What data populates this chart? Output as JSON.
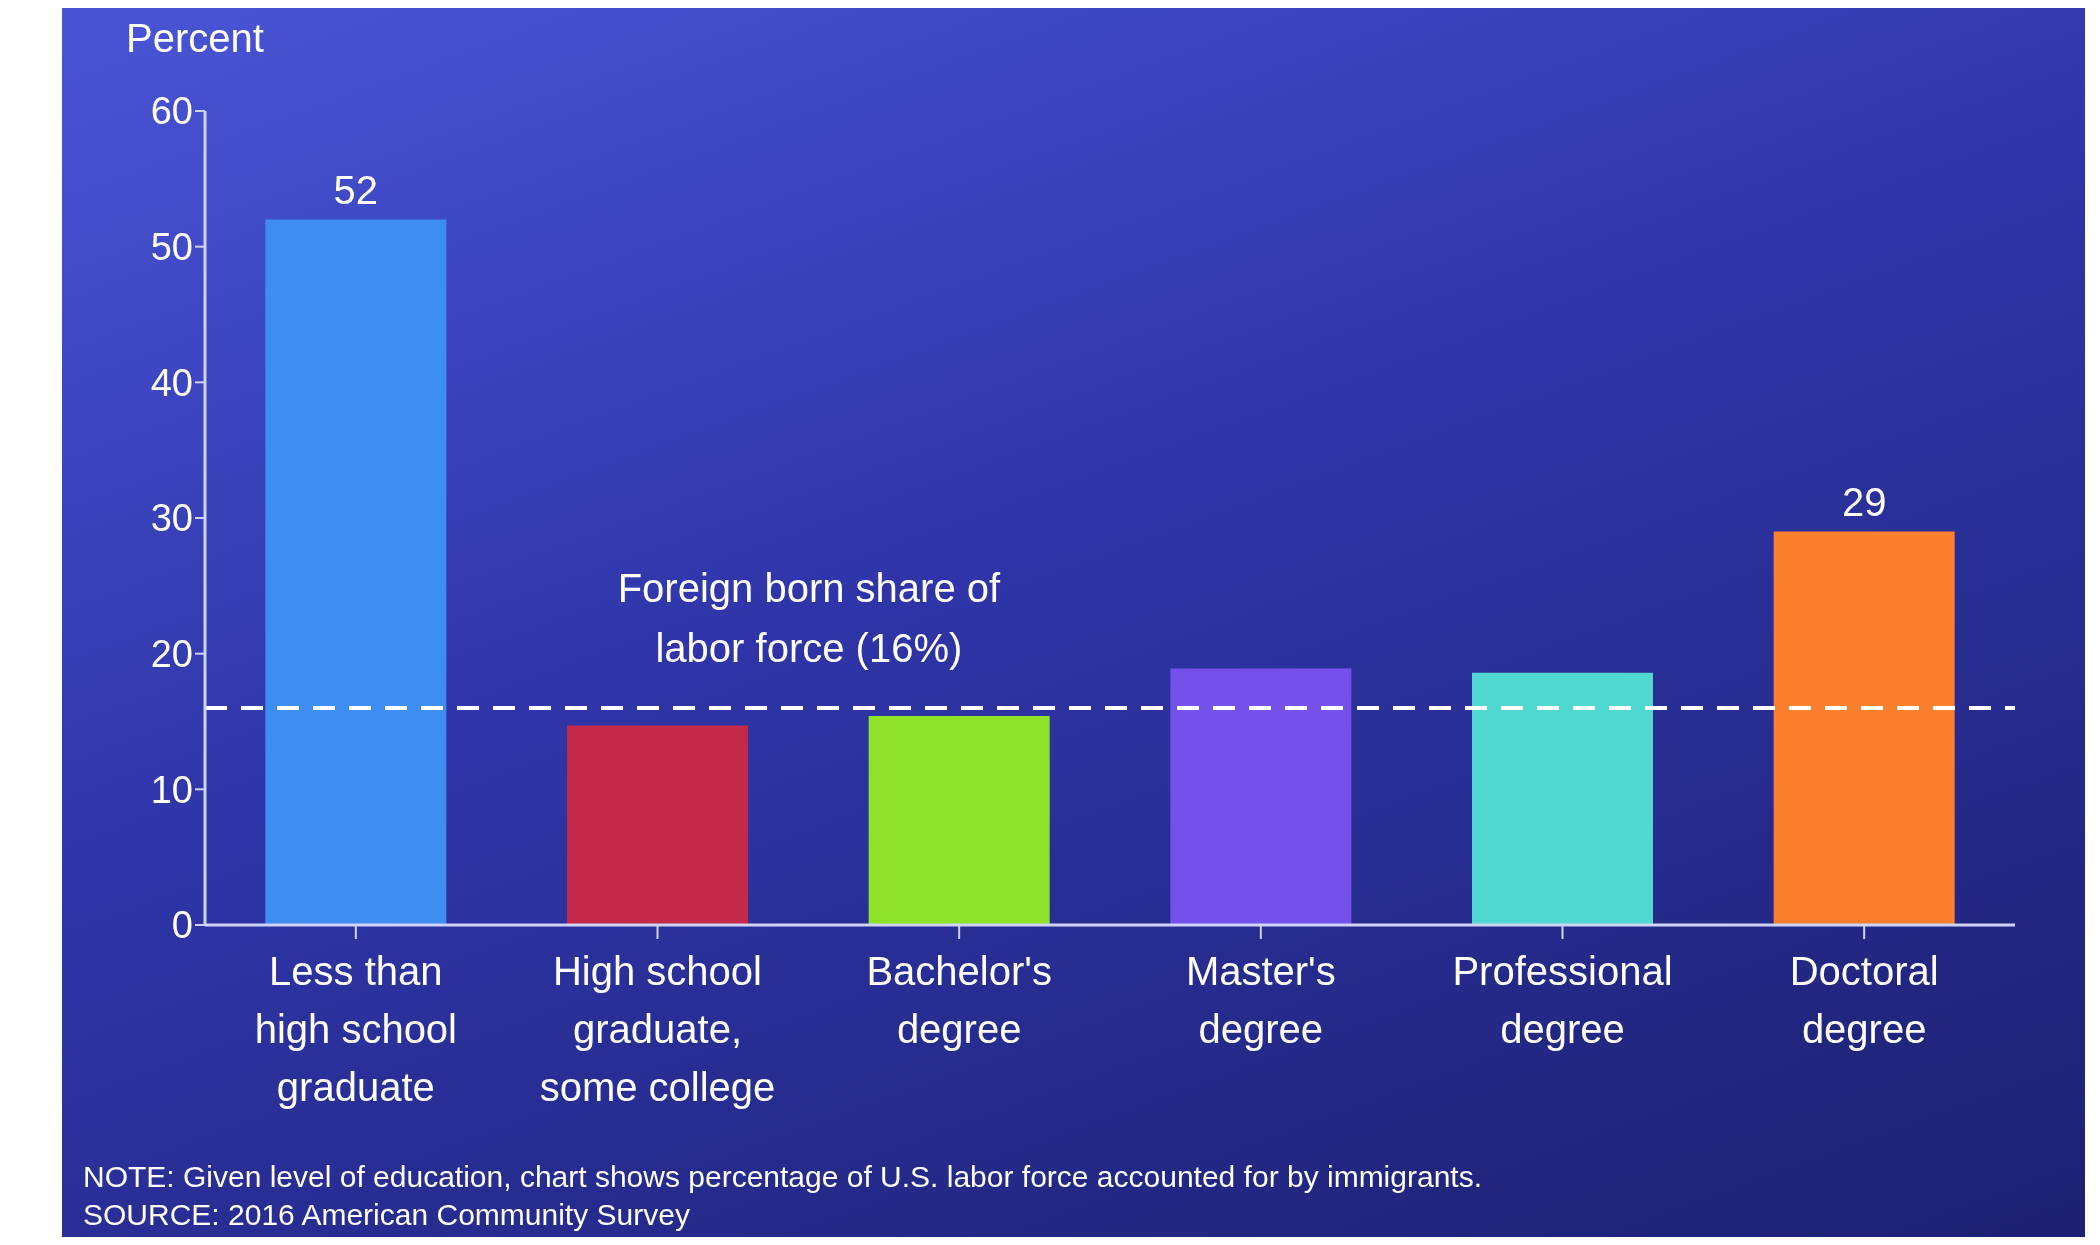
{
  "chart_data": {
    "type": "bar",
    "ylabel": "Percent",
    "categories": [
      "Less than high school graduate",
      "High school graduate, some college",
      "Bachelor's degree",
      "Master's degree",
      "Professional degree",
      "Doctoral degree"
    ],
    "values": [
      52,
      14.7,
      15.4,
      18.9,
      18.6,
      29
    ],
    "colors": [
      "#3d8ef0",
      "#c4294a",
      "#8fe22a",
      "#7451ea",
      "#4fd8d0",
      "#fb7f2c"
    ],
    "value_labels": [
      "52",
      null,
      null,
      null,
      null,
      "29"
    ],
    "ylim": [
      0,
      60
    ],
    "yticks": [
      0,
      10,
      20,
      30,
      40,
      50,
      60
    ],
    "grid": false,
    "legend": false,
    "ref_lines": [
      {
        "axis": "y",
        "value": 16,
        "label": "Foreign born share of labor force (16%)",
        "color": "#ffffff",
        "line_style": "dashed"
      }
    ],
    "annotations": [
      "NOTE: Given level of education, chart shows percentage of U.S. labor force accounted for by immigrants.",
      "SOURCE: 2016 American Community Survey"
    ]
  }
}
